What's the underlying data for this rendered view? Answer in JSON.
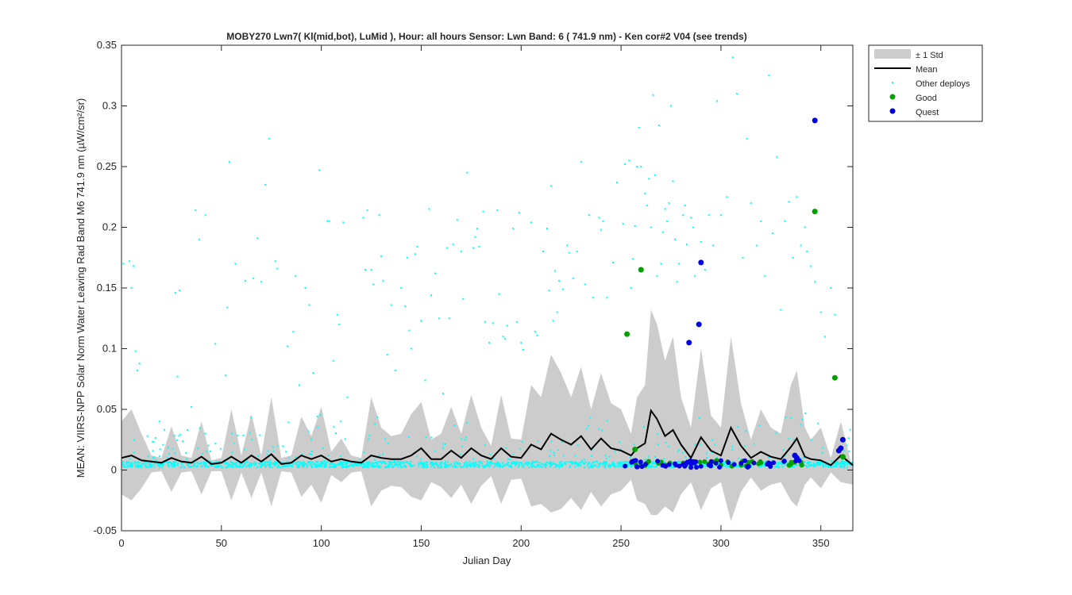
{
  "chart_data": {
    "type": "scatter",
    "title": "MOBY270   Lwn7( Kl(mid,bot), LuMid ),   Hour: all hours  Sensor: Lwn Band: 6 ( 741.9 nm)  - Ken cor#2 V04 (see trends)",
    "xlabel": "Julian Day",
    "ylabel": "MEAN: VIIRS-NPP Solar Norm Water Leaving Rad Band M6 741.9 nm (µW/cm²/sr)",
    "xlim": [
      0,
      366
    ],
    "ylim": [
      -0.05,
      0.35
    ],
    "xticks": [
      "0",
      "50",
      "100",
      "150",
      "200",
      "250",
      "300",
      "350"
    ],
    "yticks": [
      "-0.05",
      "0",
      "0.05",
      "0.1",
      "0.15",
      "0.2",
      "0.25",
      "0.3",
      "0.35"
    ],
    "grid": false,
    "legend_position": "outside-top-right",
    "legend": [
      {
        "label": "± 1 Std",
        "kind": "band",
        "color": "#cccccc"
      },
      {
        "label": "Mean",
        "kind": "line",
        "color": "#000000"
      },
      {
        "label": "Other deploys",
        "kind": "dot-small",
        "color": "#00ffff"
      },
      {
        "label": "Good",
        "kind": "dot",
        "color": "#00a000"
      },
      {
        "label": "Quest",
        "kind": "dot",
        "color": "#0000e0"
      }
    ],
    "mean": {
      "x": [
        0,
        5,
        10,
        15,
        20,
        25,
        30,
        35,
        40,
        45,
        50,
        55,
        60,
        65,
        70,
        75,
        80,
        85,
        90,
        95,
        100,
        105,
        110,
        115,
        120,
        125,
        130,
        135,
        140,
        145,
        150,
        155,
        160,
        165,
        170,
        175,
        180,
        185,
        190,
        195,
        200,
        205,
        210,
        215,
        220,
        225,
        230,
        235,
        240,
        245,
        250,
        255,
        258,
        262,
        265,
        268,
        272,
        276,
        280,
        285,
        290,
        295,
        300,
        305,
        310,
        315,
        320,
        325,
        330,
        335,
        338,
        342,
        345,
        350,
        355,
        360,
        366
      ],
      "y": [
        0.01,
        0.012,
        0.008,
        0.007,
        0.006,
        0.01,
        0.007,
        0.006,
        0.011,
        0.005,
        0.006,
        0.011,
        0.006,
        0.012,
        0.007,
        0.013,
        0.005,
        0.006,
        0.012,
        0.009,
        0.012,
        0.007,
        0.009,
        0.007,
        0.006,
        0.012,
        0.01,
        0.009,
        0.009,
        0.012,
        0.018,
        0.009,
        0.009,
        0.016,
        0.01,
        0.018,
        0.012,
        0.009,
        0.018,
        0.011,
        0.01,
        0.021,
        0.017,
        0.03,
        0.025,
        0.021,
        0.028,
        0.017,
        0.026,
        0.018,
        0.016,
        0.012,
        0.018,
        0.022,
        0.049,
        0.042,
        0.028,
        0.033,
        0.021,
        0.01,
        0.027,
        0.016,
        0.012,
        0.035,
        0.02,
        0.01,
        0.015,
        0.011,
        0.009,
        0.019,
        0.026,
        0.011,
        0.009,
        0.008,
        0.004,
        0.012,
        0.004
      ]
    },
    "std": {
      "x": [
        0,
        5,
        10,
        15,
        20,
        25,
        30,
        35,
        40,
        45,
        50,
        55,
        60,
        65,
        70,
        75,
        80,
        85,
        90,
        95,
        100,
        105,
        110,
        115,
        120,
        125,
        130,
        135,
        140,
        145,
        150,
        155,
        160,
        165,
        170,
        175,
        180,
        185,
        190,
        195,
        200,
        205,
        210,
        215,
        220,
        225,
        230,
        235,
        240,
        245,
        250,
        255,
        258,
        262,
        265,
        268,
        272,
        276,
        280,
        285,
        290,
        295,
        300,
        305,
        310,
        315,
        320,
        325,
        330,
        335,
        338,
        342,
        345,
        350,
        355,
        360,
        366
      ],
      "upper": [
        0.04,
        0.05,
        0.03,
        0.012,
        0.01,
        0.036,
        0.012,
        0.01,
        0.04,
        0.008,
        0.01,
        0.05,
        0.012,
        0.046,
        0.012,
        0.06,
        0.01,
        0.012,
        0.044,
        0.028,
        0.052,
        0.015,
        0.026,
        0.012,
        0.01,
        0.06,
        0.035,
        0.028,
        0.03,
        0.046,
        0.056,
        0.025,
        0.03,
        0.052,
        0.03,
        0.062,
        0.035,
        0.02,
        0.062,
        0.026,
        0.025,
        0.07,
        0.06,
        0.095,
        0.08,
        0.06,
        0.085,
        0.05,
        0.08,
        0.055,
        0.05,
        0.03,
        0.06,
        0.07,
        0.132,
        0.12,
        0.09,
        0.11,
        0.06,
        0.035,
        0.1,
        0.045,
        0.035,
        0.11,
        0.055,
        0.025,
        0.05,
        0.035,
        0.03,
        0.07,
        0.082,
        0.035,
        0.025,
        0.035,
        0.01,
        0.04,
        0.0
      ],
      "lower": [
        -0.02,
        -0.025,
        -0.015,
        -0.002,
        -0.001,
        -0.018,
        -0.002,
        -0.001,
        -0.02,
        -0.001,
        -0.001,
        -0.025,
        -0.002,
        -0.023,
        -0.002,
        -0.03,
        -0.001,
        -0.002,
        -0.022,
        -0.012,
        -0.027,
        -0.004,
        -0.01,
        -0.002,
        -0.001,
        -0.03,
        -0.017,
        -0.013,
        -0.014,
        -0.022,
        -0.025,
        -0.01,
        -0.014,
        -0.023,
        -0.012,
        -0.028,
        -0.013,
        -0.005,
        -0.028,
        -0.008,
        -0.007,
        -0.03,
        -0.028,
        -0.035,
        -0.032,
        -0.023,
        -0.033,
        -0.018,
        -0.03,
        -0.02,
        -0.017,
        -0.008,
        -0.025,
        -0.028,
        -0.037,
        -0.037,
        -0.03,
        -0.035,
        -0.02,
        -0.01,
        -0.033,
        -0.015,
        -0.01,
        -0.042,
        -0.018,
        -0.006,
        -0.017,
        -0.012,
        -0.01,
        -0.025,
        -0.03,
        -0.012,
        -0.006,
        -0.015,
        -0.002,
        -0.01,
        -0.012
      ]
    },
    "other_deploys_high": [
      [
        1,
        0.17
      ],
      [
        4,
        0.172
      ],
      [
        5,
        0.15
      ],
      [
        7,
        0.098
      ],
      [
        9,
        0.088
      ],
      [
        6,
        0.168
      ],
      [
        8,
        0.082
      ],
      [
        13,
        0.028
      ],
      [
        19,
        0.04
      ],
      [
        27,
        0.146
      ],
      [
        28,
        0.077
      ],
      [
        29,
        0.148
      ],
      [
        33,
        0.033
      ],
      [
        35,
        0.052
      ],
      [
        37,
        0.214
      ],
      [
        39,
        0.19
      ],
      [
        42,
        0.21
      ],
      [
        47,
        0.104
      ],
      [
        52,
        0.078
      ],
      [
        53,
        0.134
      ],
      [
        54,
        0.254
      ],
      [
        57,
        0.17
      ],
      [
        62,
        0.156
      ],
      [
        66,
        0.158
      ],
      [
        68,
        0.191
      ],
      [
        70,
        0.155
      ],
      [
        72,
        0.235
      ],
      [
        74,
        0.273
      ],
      [
        77,
        0.172
      ],
      [
        78,
        0.166
      ],
      [
        83,
        0.102
      ],
      [
        86,
        0.114
      ],
      [
        87,
        0.16
      ],
      [
        89,
        0.07
      ],
      [
        92,
        0.15
      ],
      [
        94,
        0.136
      ],
      [
        96,
        0.08
      ],
      [
        98,
        0.044
      ],
      [
        99,
        0.247
      ],
      [
        103,
        0.205
      ],
      [
        104,
        0.205
      ],
      [
        106,
        0.09
      ],
      [
        108,
        0.128
      ],
      [
        109,
        0.12
      ],
      [
        111,
        0.204
      ],
      [
        113,
        0.06
      ],
      [
        121,
        0.208
      ],
      [
        122,
        0.165
      ],
      [
        123,
        0.214
      ],
      [
        125,
        0.165
      ],
      [
        126,
        0.153
      ],
      [
        129,
        0.21
      ],
      [
        130,
        0.176
      ],
      [
        131,
        0.156
      ],
      [
        133,
        0.095
      ],
      [
        135,
        0.136
      ],
      [
        137,
        0.082
      ],
      [
        140,
        0.15
      ],
      [
        142,
        0.135
      ],
      [
        143,
        0.175
      ],
      [
        144,
        0.115
      ],
      [
        145,
        0.1
      ],
      [
        147,
        0.178
      ],
      [
        148,
        0.184
      ],
      [
        150,
        0.123
      ],
      [
        152,
        0.074
      ],
      [
        154,
        0.215
      ],
      [
        155,
        0.144
      ],
      [
        157,
        0.162
      ],
      [
        159,
        0.125
      ],
      [
        161,
        0.063
      ],
      [
        163,
        0.183
      ],
      [
        164,
        0.125
      ],
      [
        166,
        0.186
      ],
      [
        168,
        0.206
      ],
      [
        170,
        0.18
      ],
      [
        171,
        0.141
      ],
      [
        173,
        0.245
      ],
      [
        176,
        0.183
      ],
      [
        177,
        0.192
      ],
      [
        178,
        0.199
      ],
      [
        179,
        0.184
      ],
      [
        181,
        0.213
      ],
      [
        182,
        0.122
      ],
      [
        184,
        0.105
      ],
      [
        186,
        0.121
      ],
      [
        188,
        0.214
      ],
      [
        189,
        0.145
      ],
      [
        191,
        0.11
      ],
      [
        192,
        0.108
      ],
      [
        193,
        0.119
      ],
      [
        196,
        0.199
      ],
      [
        198,
        0.122
      ],
      [
        199,
        0.212
      ],
      [
        200,
        0.105
      ],
      [
        201,
        0.099
      ],
      [
        205,
        0.204
      ],
      [
        207,
        0.114
      ],
      [
        208,
        0.111
      ],
      [
        211,
        0.18
      ],
      [
        213,
        0.199
      ],
      [
        214,
        0.148
      ],
      [
        215,
        0.234
      ],
      [
        216,
        0.123
      ],
      [
        217,
        0.164
      ],
      [
        218,
        0.13
      ],
      [
        219,
        0.156
      ],
      [
        221,
        0.149
      ],
      [
        223,
        0.185
      ],
      [
        224,
        0.179
      ],
      [
        226,
        0.158
      ],
      [
        228,
        0.18
      ],
      [
        230,
        0.254
      ],
      [
        232,
        0.153
      ],
      [
        234,
        0.21
      ],
      [
        236,
        0.142
      ],
      [
        239,
        0.208
      ],
      [
        240,
        0.198
      ],
      [
        241,
        0.205
      ],
      [
        243,
        0.142
      ],
      [
        246,
        0.171
      ],
      [
        248,
        0.237
      ],
      [
        251,
        0.203
      ],
      [
        252,
        0.252
      ],
      [
        254,
        0.255
      ],
      [
        255,
        0.15
      ],
      [
        256,
        0.174
      ],
      [
        257,
        0.201
      ],
      [
        258,
        0.25
      ],
      [
        259,
        0.282
      ],
      [
        260,
        0.25
      ],
      [
        262,
        0.228
      ],
      [
        263,
        0.218
      ],
      [
        264,
        0.24
      ],
      [
        265,
        0.2
      ],
      [
        266,
        0.309
      ],
      [
        267,
        0.243
      ],
      [
        268,
        0.16
      ],
      [
        269,
        0.284
      ],
      [
        270,
        0.17
      ],
      [
        271,
        0.196
      ],
      [
        272,
        0.215
      ],
      [
        273,
        0.205
      ],
      [
        274,
        0.22
      ],
      [
        275,
        0.3
      ],
      [
        276,
        0.238
      ],
      [
        277,
        0.19
      ],
      [
        278,
        0.155
      ],
      [
        279,
        0.17
      ],
      [
        281,
        0.21
      ],
      [
        282,
        0.218
      ],
      [
        283,
        0.186
      ],
      [
        285,
        0.208
      ],
      [
        286,
        0.2
      ],
      [
        287,
        0.16
      ],
      [
        288,
        0.12
      ],
      [
        290,
        0.188
      ],
      [
        292,
        0.165
      ],
      [
        294,
        0.21
      ],
      [
        296,
        0.185
      ],
      [
        298,
        0.304
      ],
      [
        300,
        0.21
      ],
      [
        303,
        0.225
      ],
      [
        306,
        0.34
      ],
      [
        308,
        0.31
      ],
      [
        311,
        0.175
      ],
      [
        313,
        0.273
      ],
      [
        315,
        0.22
      ],
      [
        318,
        0.185
      ],
      [
        320,
        0.205
      ],
      [
        322,
        0.16
      ],
      [
        324,
        0.325
      ],
      [
        326,
        0.195
      ],
      [
        328,
        0.258
      ],
      [
        330,
        0.132
      ],
      [
        332,
        0.205
      ],
      [
        334,
        0.221
      ],
      [
        336,
        0.175
      ],
      [
        338,
        0.225
      ],
      [
        340,
        0.185
      ],
      [
        342,
        0.2
      ],
      [
        343,
        0.18
      ],
      [
        345,
        0.168
      ],
      [
        347,
        0.155
      ],
      [
        350,
        0.13
      ],
      [
        352,
        0.11
      ],
      [
        355,
        0.15
      ],
      [
        357,
        0.128
      ]
    ],
    "good": {
      "x": [
        253,
        257,
        260,
        347,
        357,
        361
      ],
      "y": [
        0.112,
        0.017,
        0.165,
        0.213,
        0.076,
        0.011
      ]
    },
    "quest": {
      "x": [
        284,
        289,
        290,
        347,
        359,
        360,
        361,
        337,
        338
      ],
      "y": [
        0.105,
        0.12,
        0.171,
        0.288,
        0.016,
        0.018,
        0.025,
        0.012,
        0.01
      ]
    }
  }
}
